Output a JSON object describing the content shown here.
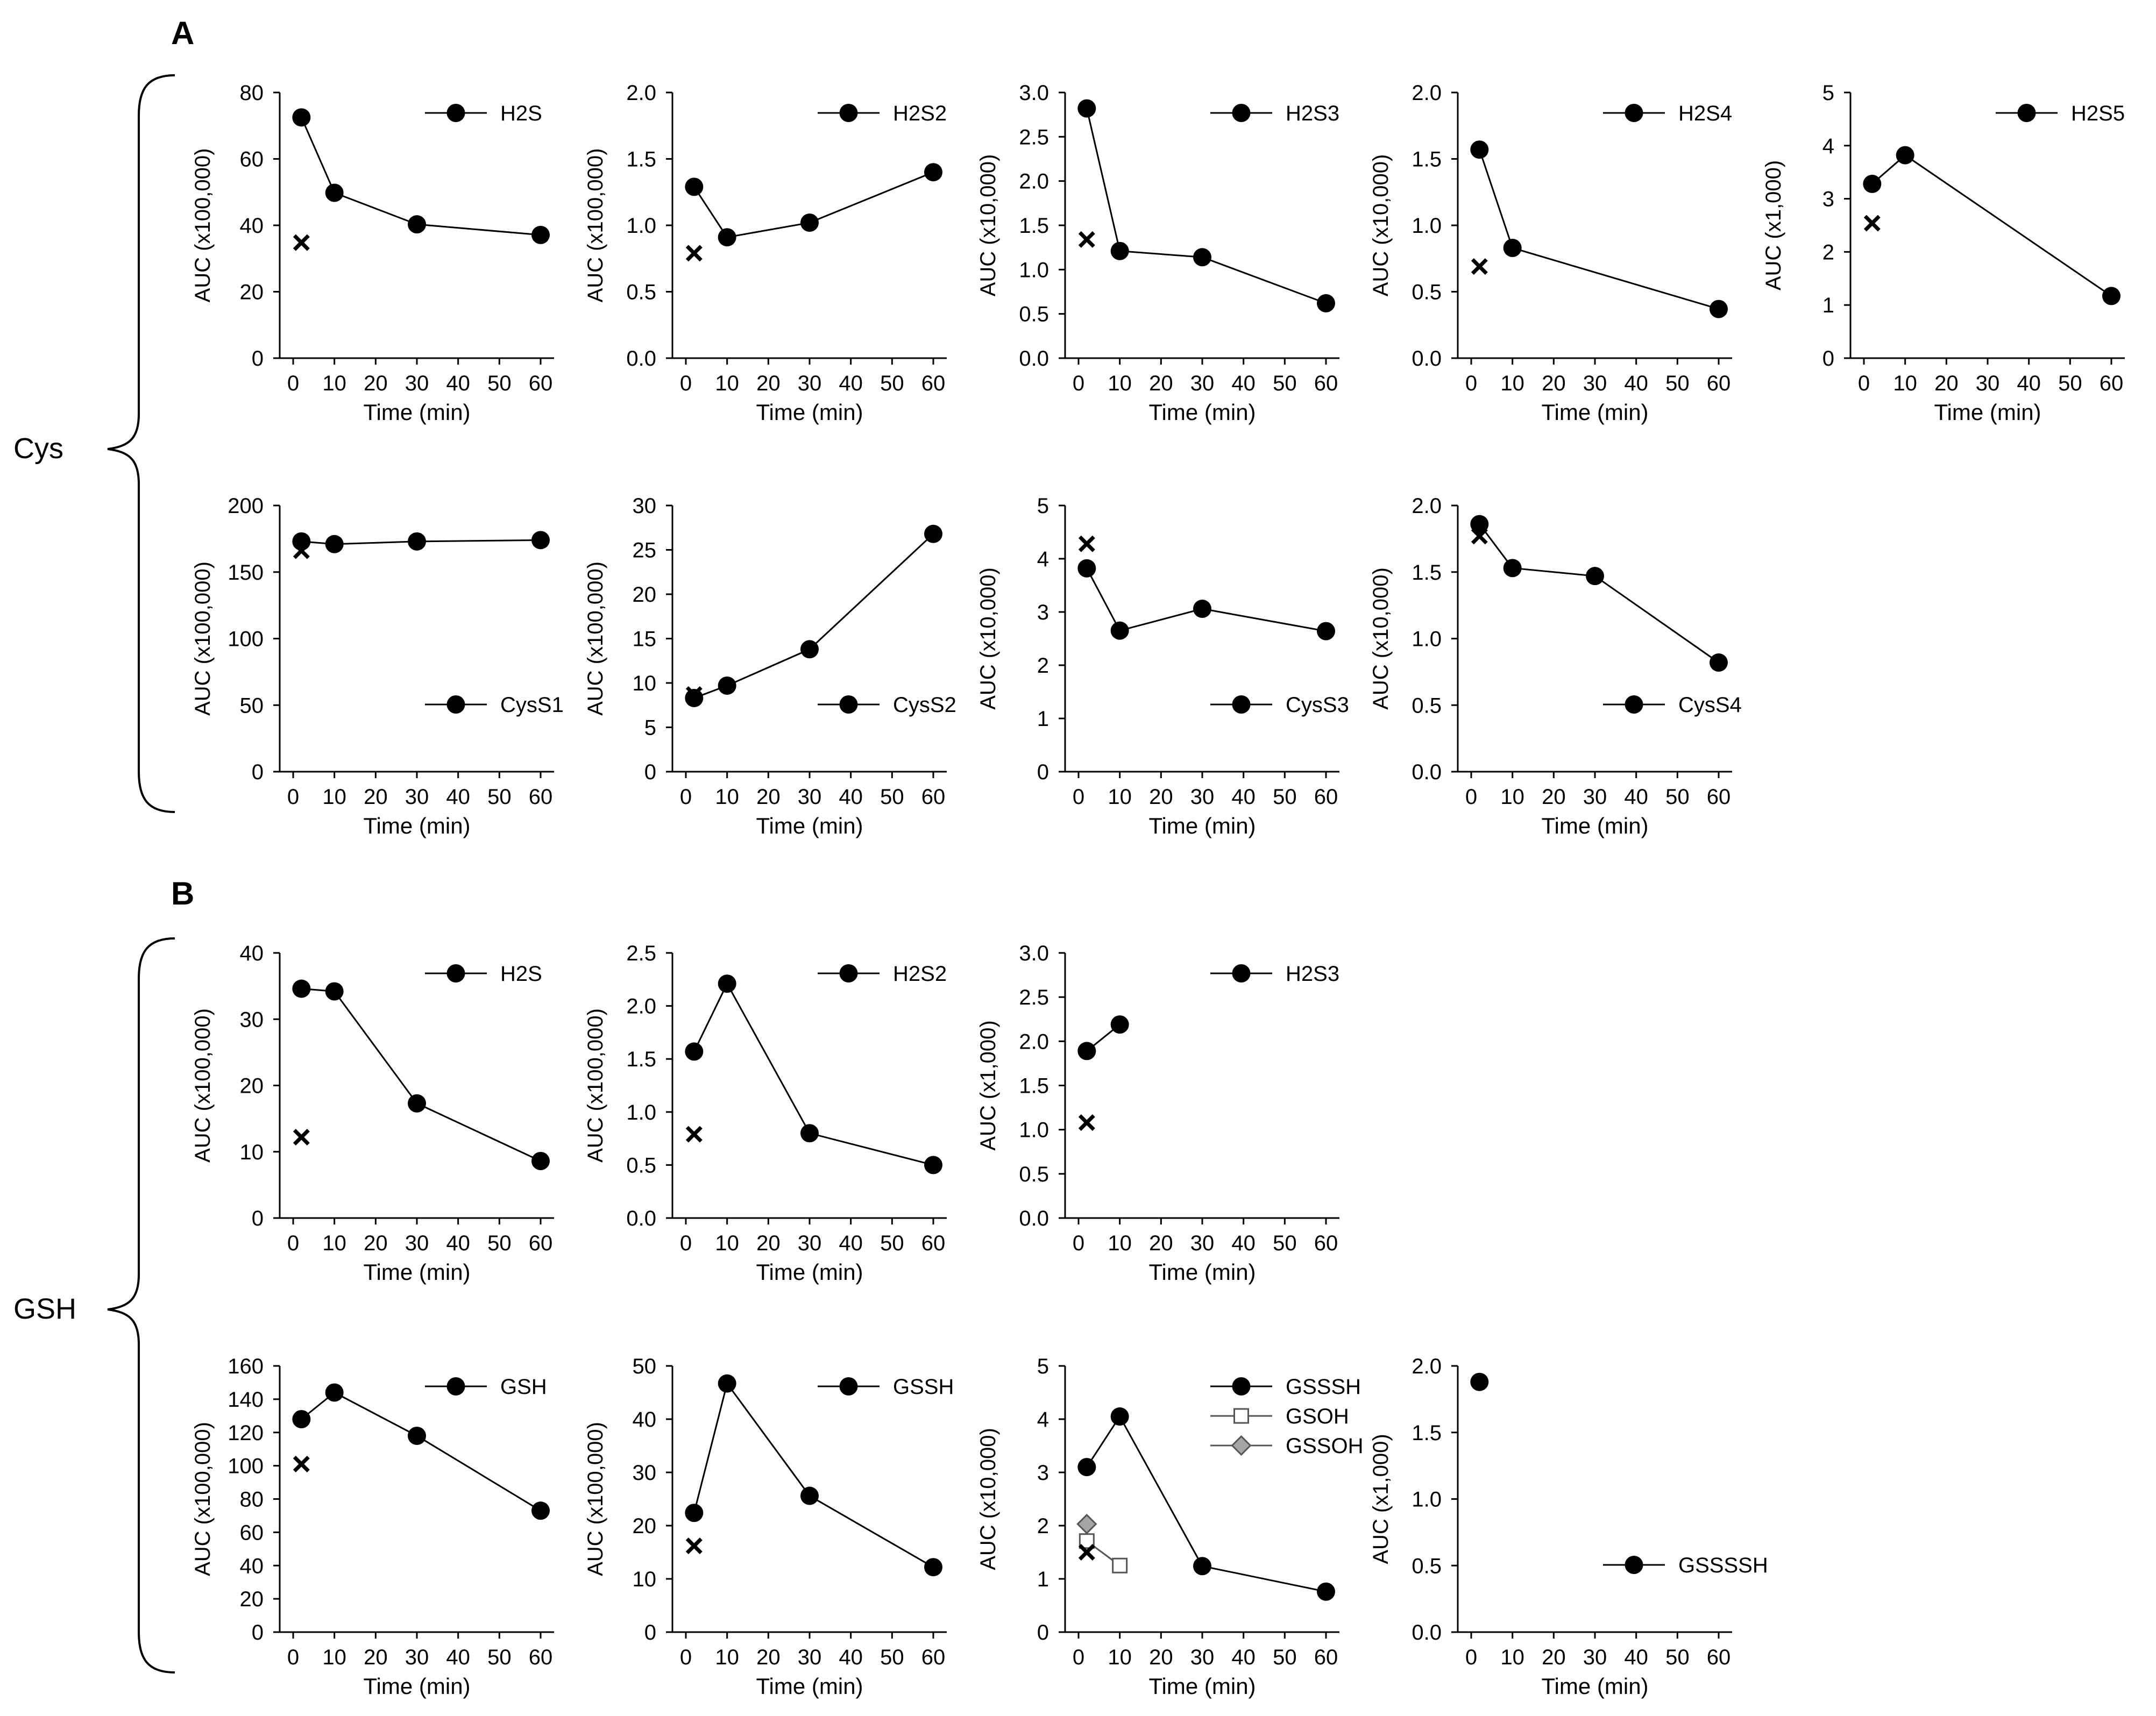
{
  "panel_labels": {
    "A": "A",
    "B": "B"
  },
  "group_labels": {
    "cys": "Cys",
    "gsh": "GSH"
  },
  "chart_data": [
    {
      "id": "A-H2S",
      "type": "line",
      "ylabel": "AUC (x100,000)",
      "xlabel": "Time (min)",
      "xlim": [
        0,
        60
      ],
      "xticks": [
        0,
        10,
        20,
        30,
        40,
        50,
        60
      ],
      "ylim": [
        0,
        80
      ],
      "yticks": [
        "0",
        "20",
        "40",
        "60",
        "80"
      ],
      "legend_pos": "top-right",
      "series": [
        {
          "name": "H2S",
          "marker": "filled-circle",
          "x": [
            2,
            10,
            30,
            60
          ],
          "y": [
            72.5,
            49.8,
            40.3,
            37.1
          ]
        }
      ],
      "control": [
        {
          "x": 2,
          "y": 34.8
        }
      ]
    },
    {
      "id": "A-H2S2",
      "type": "line",
      "ylabel": "AUC (x100,000)",
      "xlabel": "Time (min)",
      "xlim": [
        0,
        60
      ],
      "xticks": [
        0,
        10,
        20,
        30,
        40,
        50,
        60
      ],
      "ylim": [
        0,
        2
      ],
      "yticks": [
        "0.0",
        "0.5",
        "1.0",
        "1.5",
        "2.0"
      ],
      "legend_pos": "top-right",
      "series": [
        {
          "name": "H2S2",
          "marker": "filled-circle",
          "x": [
            2,
            10,
            30,
            60
          ],
          "y": [
            1.29,
            0.91,
            1.02,
            1.4
          ]
        }
      ],
      "control": [
        {
          "x": 2,
          "y": 0.79
        }
      ]
    },
    {
      "id": "A-H2S3",
      "type": "line",
      "ylabel": "AUC (x10,000)",
      "xlabel": "Time (min)",
      "xlim": [
        0,
        60
      ],
      "xticks": [
        0,
        10,
        20,
        30,
        40,
        50,
        60
      ],
      "ylim": [
        0,
        3
      ],
      "yticks": [
        "0.0",
        "0.5",
        "1.0",
        "1.5",
        "2.0",
        "2.5",
        "3.0"
      ],
      "legend_pos": "top-right",
      "series": [
        {
          "name": "H2S3",
          "marker": "filled-circle",
          "x": [
            2,
            10,
            30,
            60
          ],
          "y": [
            2.82,
            1.21,
            1.14,
            0.62
          ]
        }
      ],
      "control": [
        {
          "x": 2,
          "y": 1.34
        }
      ]
    },
    {
      "id": "A-H2S4",
      "type": "line",
      "ylabel": "AUC (x10,000)",
      "xlabel": "Time (min)",
      "xlim": [
        0,
        60
      ],
      "xticks": [
        0,
        10,
        20,
        30,
        40,
        50,
        60
      ],
      "ylim": [
        0,
        2
      ],
      "yticks": [
        "0.0",
        "0.5",
        "1.0",
        "1.5",
        "2.0"
      ],
      "legend_pos": "top-right",
      "series": [
        {
          "name": "H2S4",
          "marker": "filled-circle",
          "x": [
            2,
            10,
            60
          ],
          "y": [
            1.57,
            0.83,
            0.37
          ]
        }
      ],
      "control": [
        {
          "x": 2,
          "y": 0.69
        }
      ]
    },
    {
      "id": "A-H2S5",
      "type": "line",
      "ylabel": "AUC (x1,000)",
      "xlabel": "Time (min)",
      "xlim": [
        0,
        60
      ],
      "xticks": [
        0,
        10,
        20,
        30,
        40,
        50,
        60
      ],
      "ylim": [
        0,
        5
      ],
      "yticks": [
        "0",
        "1",
        "2",
        "3",
        "4",
        "5"
      ],
      "legend_pos": "top-right",
      "series": [
        {
          "name": "H2S5",
          "marker": "filled-circle",
          "x": [
            2,
            10,
            60
          ],
          "y": [
            3.28,
            3.82,
            1.17
          ]
        }
      ],
      "control": [
        {
          "x": 2,
          "y": 2.54
        }
      ]
    },
    {
      "id": "A-CysS1",
      "type": "line",
      "ylabel": "AUC (x100,000)",
      "xlabel": "Time (min)",
      "xlim": [
        0,
        60
      ],
      "xticks": [
        0,
        10,
        20,
        30,
        40,
        50,
        60
      ],
      "ylim": [
        0,
        200
      ],
      "yticks": [
        "0",
        "50",
        "100",
        "150",
        "200"
      ],
      "legend_pos": "bottom-right",
      "series": [
        {
          "name": "CysS1",
          "marker": "filled-circle",
          "x": [
            2,
            10,
            30,
            60
          ],
          "y": [
            173,
            171,
            173,
            174
          ]
        }
      ],
      "control": [
        {
          "x": 2,
          "y": 166
        }
      ]
    },
    {
      "id": "A-CysS2",
      "type": "line",
      "ylabel": "AUC (x100,000)",
      "xlabel": "Time (min)",
      "xlim": [
        0,
        60
      ],
      "xticks": [
        0,
        10,
        20,
        30,
        40,
        50,
        60
      ],
      "ylim": [
        0,
        30
      ],
      "yticks": [
        "0",
        "5",
        "10",
        "15",
        "20",
        "25",
        "30"
      ],
      "legend_pos": "bottom-right",
      "series": [
        {
          "name": "CysS2",
          "marker": "filled-circle",
          "x": [
            2,
            10,
            30,
            60
          ],
          "y": [
            8.3,
            9.7,
            13.8,
            26.8
          ]
        }
      ],
      "control": [
        {
          "x": 2,
          "y": 8.7
        }
      ]
    },
    {
      "id": "A-CysS3",
      "type": "line",
      "ylabel": "AUC (x10,000)",
      "xlabel": "Time (min)",
      "xlim": [
        0,
        60
      ],
      "xticks": [
        0,
        10,
        20,
        30,
        40,
        50,
        60
      ],
      "ylim": [
        0,
        5
      ],
      "yticks": [
        "0",
        "1",
        "2",
        "3",
        "4",
        "5"
      ],
      "legend_pos": "bottom-right",
      "series": [
        {
          "name": "CysS3",
          "marker": "filled-circle",
          "x": [
            2,
            10,
            30,
            60
          ],
          "y": [
            3.82,
            2.65,
            3.06,
            2.64
          ]
        }
      ],
      "control": [
        {
          "x": 2,
          "y": 4.28
        }
      ]
    },
    {
      "id": "A-CysS4",
      "type": "line",
      "ylabel": "AUC (x10,000)",
      "xlabel": "Time (min)",
      "xlim": [
        0,
        60
      ],
      "xticks": [
        0,
        10,
        20,
        30,
        40,
        50,
        60
      ],
      "ylim": [
        0,
        2
      ],
      "yticks": [
        "0.0",
        "0.5",
        "1.0",
        "1.5",
        "2.0"
      ],
      "legend_pos": "bottom-right",
      "series": [
        {
          "name": "CysS4",
          "marker": "filled-circle",
          "x": [
            2,
            10,
            30,
            60
          ],
          "y": [
            1.86,
            1.53,
            1.47,
            0.82
          ]
        }
      ],
      "control": [
        {
          "x": 2,
          "y": 1.77
        }
      ]
    },
    {
      "id": "B-H2S",
      "type": "line",
      "ylabel": "AUC (x100,000)",
      "xlabel": "Time (min)",
      "xlim": [
        0,
        60
      ],
      "xticks": [
        0,
        10,
        20,
        30,
        40,
        50,
        60
      ],
      "ylim": [
        0,
        40
      ],
      "yticks": [
        "0",
        "10",
        "20",
        "30",
        "40"
      ],
      "legend_pos": "top-right",
      "series": [
        {
          "name": "H2S",
          "marker": "filled-circle",
          "x": [
            2,
            10,
            30,
            60
          ],
          "y": [
            34.6,
            34.2,
            17.3,
            8.6
          ]
        }
      ],
      "control": [
        {
          "x": 2,
          "y": 12.2
        }
      ]
    },
    {
      "id": "B-H2S2",
      "type": "line",
      "ylabel": "AUC (x100,000)",
      "xlabel": "Time (min)",
      "xlim": [
        0,
        60
      ],
      "xticks": [
        0,
        10,
        20,
        30,
        40,
        50,
        60
      ],
      "ylim": [
        0,
        2.5
      ],
      "yticks": [
        "0.0",
        "0.5",
        "1.0",
        "1.5",
        "2.0",
        "2.5"
      ],
      "legend_pos": "top-right",
      "series": [
        {
          "name": "H2S2",
          "marker": "filled-circle",
          "x": [
            2,
            10,
            30,
            60
          ],
          "y": [
            1.57,
            2.21,
            0.8,
            0.5
          ]
        }
      ],
      "control": [
        {
          "x": 2,
          "y": 0.79
        }
      ]
    },
    {
      "id": "B-H2S3",
      "type": "line",
      "ylabel": "AUC (x1,000)",
      "xlabel": "Time (min)",
      "xlim": [
        0,
        60
      ],
      "xticks": [
        0,
        10,
        20,
        30,
        40,
        50,
        60
      ],
      "ylim": [
        0,
        3
      ],
      "yticks": [
        "0.0",
        "0.5",
        "1.0",
        "1.5",
        "2.0",
        "2.5",
        "3.0"
      ],
      "legend_pos": "top-right",
      "series": [
        {
          "name": "H2S3",
          "marker": "filled-circle",
          "x": [
            2,
            10
          ],
          "y": [
            1.89,
            2.19
          ]
        }
      ],
      "control": [
        {
          "x": 2,
          "y": 1.08
        }
      ]
    },
    {
      "id": "B-GSH",
      "type": "line",
      "ylabel": "AUC (x100,000)",
      "xlabel": "Time (min)",
      "xlim": [
        0,
        60
      ],
      "xticks": [
        0,
        10,
        20,
        30,
        40,
        50,
        60
      ],
      "ylim": [
        0,
        160
      ],
      "yticks": [
        "0",
        "20",
        "40",
        "60",
        "80",
        "100",
        "120",
        "140",
        "160"
      ],
      "legend_pos": "top-right",
      "series": [
        {
          "name": "GSH",
          "marker": "filled-circle",
          "x": [
            2,
            10,
            30,
            60
          ],
          "y": [
            128,
            144,
            118,
            73
          ]
        }
      ],
      "control": [
        {
          "x": 2,
          "y": 101
        }
      ]
    },
    {
      "id": "B-GSSH",
      "type": "line",
      "ylabel": "AUC (x100,000)",
      "xlabel": "Time (min)",
      "xlim": [
        0,
        60
      ],
      "xticks": [
        0,
        10,
        20,
        30,
        40,
        50,
        60
      ],
      "ylim": [
        0,
        50
      ],
      "yticks": [
        "0",
        "10",
        "20",
        "30",
        "40",
        "50"
      ],
      "legend_pos": "top-right",
      "series": [
        {
          "name": "GSSH",
          "marker": "filled-circle",
          "x": [
            2,
            10,
            30,
            60
          ],
          "y": [
            22.4,
            46.7,
            25.6,
            12.2
          ]
        }
      ],
      "control": [
        {
          "x": 2,
          "y": 16.2
        }
      ]
    },
    {
      "id": "B-GSSSH",
      "type": "line",
      "ylabel": "AUC (x10,000)",
      "xlabel": "Time (min)",
      "xlim": [
        0,
        60
      ],
      "xticks": [
        0,
        10,
        20,
        30,
        40,
        50,
        60
      ],
      "ylim": [
        0,
        5
      ],
      "yticks": [
        "0",
        "1",
        "2",
        "3",
        "4",
        "5"
      ],
      "legend_pos": "top-right",
      "series": [
        {
          "name": "GSSSH",
          "marker": "filled-circle",
          "x": [
            2,
            10,
            30,
            60
          ],
          "y": [
            3.1,
            4.05,
            1.24,
            0.76
          ]
        },
        {
          "name": "GSOH",
          "marker": "open-square",
          "x": [
            2,
            10
          ],
          "y": [
            1.71,
            1.25
          ]
        },
        {
          "name": "GSSOH",
          "marker": "gray-diamond",
          "x": [
            2
          ],
          "y": [
            2.03
          ]
        }
      ],
      "control": [
        {
          "x": 2,
          "y": 1.5
        }
      ]
    },
    {
      "id": "B-GSSSSH",
      "type": "line",
      "ylabel": "AUC (x1,000)",
      "xlabel": "Time (min)",
      "xlim": [
        0,
        60
      ],
      "xticks": [
        0,
        10,
        20,
        30,
        40,
        50,
        60
      ],
      "ylim": [
        0,
        2
      ],
      "yticks": [
        "0.0",
        "0.5",
        "1.0",
        "1.5",
        "2.0"
      ],
      "legend_pos": "bottom-right",
      "series": [
        {
          "name": "GSSSSH",
          "marker": "filled-circle",
          "x": [
            2
          ],
          "y": [
            1.88
          ]
        }
      ],
      "control": []
    }
  ]
}
